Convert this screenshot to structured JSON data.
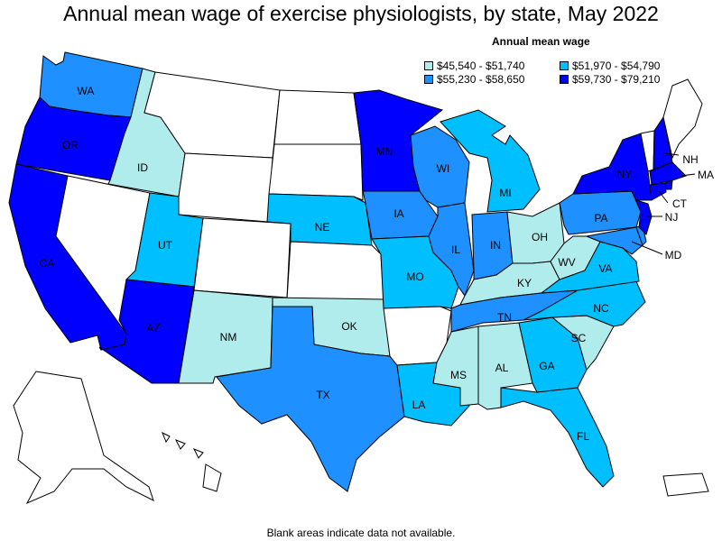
{
  "title": "Annual mean wage of exercise physiologists, by state, May 2022",
  "legend": {
    "title": "Annual mean wage",
    "items": [
      {
        "label": "$45,540 - $51,740",
        "color": "#b0ecec"
      },
      {
        "label": "$51,970 - $54,790",
        "color": "#00bfff"
      },
      {
        "label": "$55,230 - $58,650",
        "color": "#1e90ff"
      },
      {
        "label": "$59,730 - $79,210",
        "color": "#0000ff"
      }
    ]
  },
  "blank_color": "#ffffff",
  "footnote": "Blank areas indicate data not available.",
  "states": {
    "WA": {
      "label": "WA",
      "bin": 2
    },
    "OR": {
      "label": "OR",
      "bin": 3
    },
    "CA": {
      "label": "CA",
      "bin": 3
    },
    "ID": {
      "label": "ID",
      "bin": 0
    },
    "NV": {
      "label": "",
      "bin": null
    },
    "MT": {
      "label": "",
      "bin": null
    },
    "WY": {
      "label": "",
      "bin": null
    },
    "UT": {
      "label": "UT",
      "bin": 1
    },
    "AZ": {
      "label": "AZ",
      "bin": 3
    },
    "CO": {
      "label": "",
      "bin": null
    },
    "NM": {
      "label": "NM",
      "bin": 0
    },
    "ND": {
      "label": "",
      "bin": null
    },
    "SD": {
      "label": "",
      "bin": null
    },
    "NE": {
      "label": "NE",
      "bin": 1
    },
    "KS": {
      "label": "",
      "bin": null
    },
    "OK": {
      "label": "OK",
      "bin": 0
    },
    "TX": {
      "label": "TX",
      "bin": 2
    },
    "MN": {
      "label": "MN",
      "bin": 3
    },
    "IA": {
      "label": "IA",
      "bin": 2
    },
    "MO": {
      "label": "MO",
      "bin": 1
    },
    "AR": {
      "label": "",
      "bin": null
    },
    "LA": {
      "label": "LA",
      "bin": 1
    },
    "WI": {
      "label": "WI",
      "bin": 2
    },
    "IL": {
      "label": "IL",
      "bin": 2
    },
    "MI": {
      "label": "MI",
      "bin": 1
    },
    "IN": {
      "label": "IN",
      "bin": 2
    },
    "OH": {
      "label": "OH",
      "bin": 0
    },
    "KY": {
      "label": "KY",
      "bin": 0
    },
    "TN": {
      "label": "TN",
      "bin": 2
    },
    "MS": {
      "label": "MS",
      "bin": 0
    },
    "AL": {
      "label": "AL",
      "bin": 0
    },
    "GA": {
      "label": "GA",
      "bin": 1
    },
    "FL": {
      "label": "FL",
      "bin": 1
    },
    "SC": {
      "label": "SC",
      "bin": 0
    },
    "NC": {
      "label": "NC",
      "bin": 1
    },
    "VA": {
      "label": "VA",
      "bin": 1
    },
    "WV": {
      "label": "WV",
      "bin": 0
    },
    "PA": {
      "label": "PA",
      "bin": 2
    },
    "NY": {
      "label": "NY",
      "bin": 3
    },
    "VT": {
      "label": "",
      "bin": null
    },
    "NH": {
      "label": "NH",
      "bin": 3
    },
    "ME": {
      "label": "",
      "bin": null
    },
    "MA": {
      "label": "MA",
      "bin": 3
    },
    "RI": {
      "label": "",
      "bin": 3
    },
    "CT": {
      "label": "CT",
      "bin": 3
    },
    "NJ": {
      "label": "NJ",
      "bin": 3
    },
    "DE": {
      "label": "",
      "bin": 2
    },
    "MD": {
      "label": "MD",
      "bin": 2
    },
    "AK": {
      "label": "",
      "bin": null
    },
    "HI": {
      "label": "",
      "bin": null
    },
    "PR": {
      "label": "",
      "bin": null
    }
  }
}
